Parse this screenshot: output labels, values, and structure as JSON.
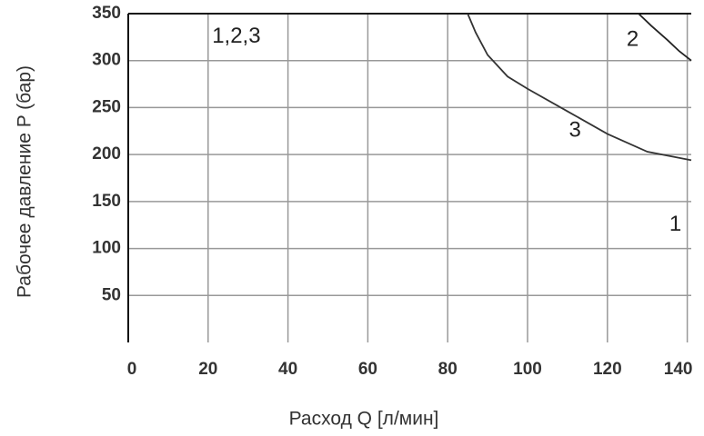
{
  "chart_data": {
    "type": "line",
    "x_label": "Расход Q [л/мин]",
    "y_label": "Рабочее давление P (бар)",
    "xlim": [
      0,
      141
    ],
    "ylim": [
      0,
      350
    ],
    "xticks": [
      0,
      20,
      40,
      60,
      80,
      100,
      120,
      140
    ],
    "yticks": [
      50,
      100,
      150,
      200,
      250,
      300,
      350
    ],
    "grid": true,
    "series": [
      {
        "name": "2",
        "color": "#222222",
        "x": [
          127.8,
          131,
          135,
          138,
          141
        ],
        "values": [
          350,
          337,
          322,
          310,
          300
        ]
      },
      {
        "name": "3",
        "color": "#333333",
        "x": [
          85,
          87,
          90,
          95,
          100,
          110,
          120,
          130,
          141
        ],
        "values": [
          350,
          330,
          306,
          283,
          270,
          246,
          222,
          203,
          194
        ]
      }
    ],
    "annotations": [
      "1,2,3",
      "1"
    ]
  }
}
